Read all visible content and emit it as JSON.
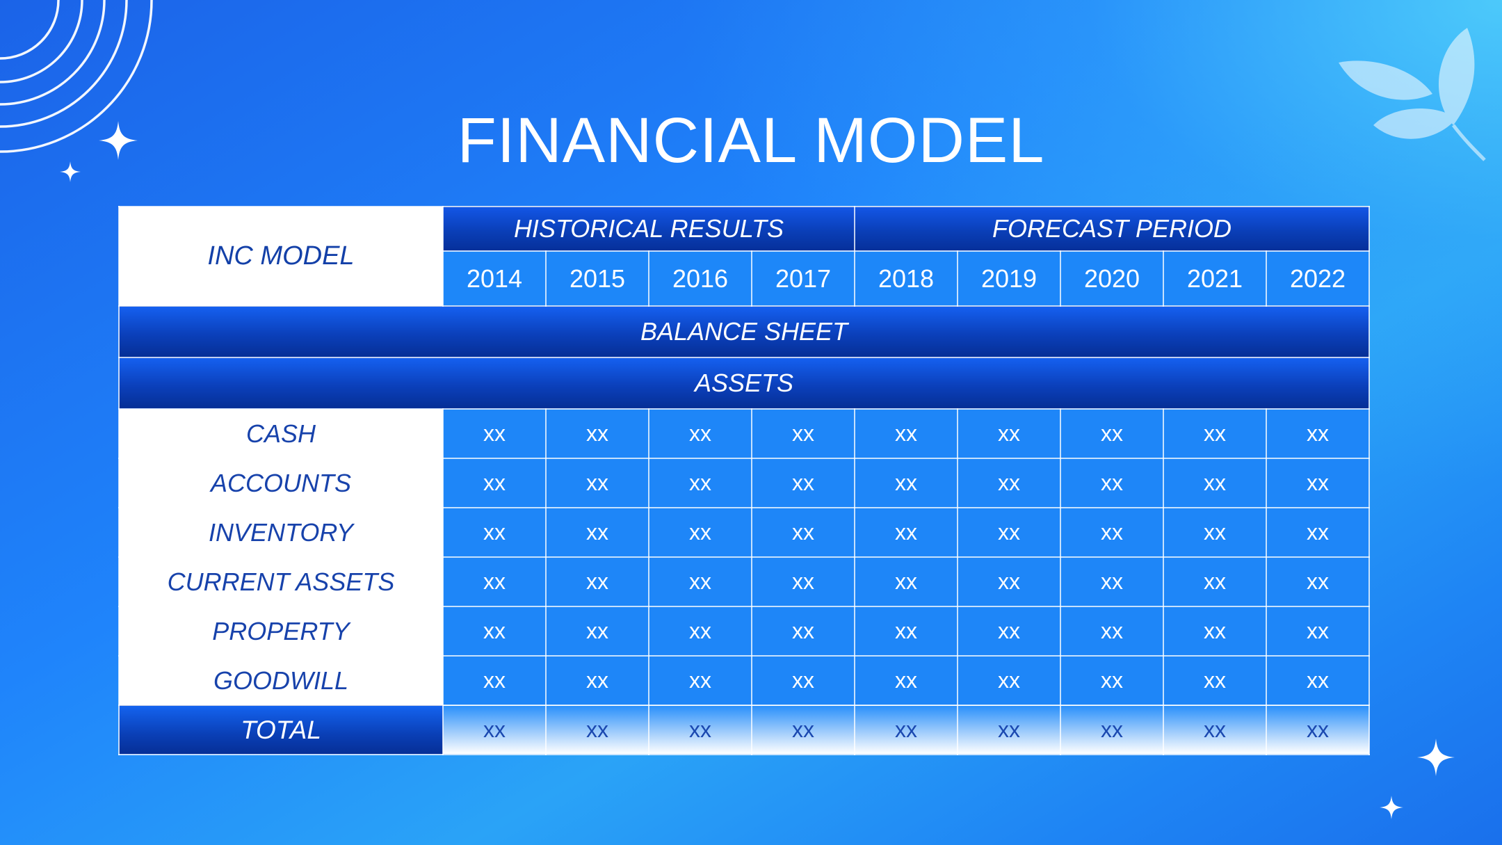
{
  "title": "FINANCIAL MODEL",
  "table": {
    "corner_label": "INC MODEL",
    "groups": [
      {
        "label": "HISTORICAL RESULTS",
        "span": 4
      },
      {
        "label": "FORECAST PERIOD",
        "span": 5
      }
    ],
    "years": [
      "2014",
      "2015",
      "2016",
      "2017",
      "2018",
      "2019",
      "2020",
      "2021",
      "2022"
    ],
    "section_headers": [
      "BALANCE SHEET",
      "ASSETS"
    ],
    "rows": [
      {
        "label": "CASH",
        "values": [
          "xx",
          "xx",
          "xx",
          "xx",
          "xx",
          "xx",
          "xx",
          "xx",
          "xx"
        ]
      },
      {
        "label": "ACCOUNTS",
        "values": [
          "xx",
          "xx",
          "xx",
          "xx",
          "xx",
          "xx",
          "xx",
          "xx",
          "xx"
        ]
      },
      {
        "label": "INVENTORY",
        "values": [
          "xx",
          "xx",
          "xx",
          "xx",
          "xx",
          "xx",
          "xx",
          "xx",
          "xx"
        ]
      },
      {
        "label": "CURRENT ASSETS",
        "values": [
          "xx",
          "xx",
          "xx",
          "xx",
          "xx",
          "xx",
          "xx",
          "xx",
          "xx"
        ]
      },
      {
        "label": "PROPERTY",
        "values": [
          "xx",
          "xx",
          "xx",
          "xx",
          "xx",
          "xx",
          "xx",
          "xx",
          "xx"
        ]
      },
      {
        "label": "GOODWILL",
        "values": [
          "xx",
          "xx",
          "xx",
          "xx",
          "xx",
          "xx",
          "xx",
          "xx",
          "xx"
        ]
      }
    ],
    "total": {
      "label": "TOTAL",
      "values": [
        "xx",
        "xx",
        "xx",
        "xx",
        "xx",
        "xx",
        "xx",
        "xx",
        "xx"
      ]
    }
  },
  "decorations": {
    "top_left": "concentric-arcs-icon",
    "top_right": "leaf-sprig-icon",
    "sparkles": "sparkle-icon"
  },
  "colors": {
    "background": "#1f84fb",
    "header_dark": "#0a3fb8",
    "cell": "#1e86f8",
    "label_text": "#1742ab",
    "white": "#ffffff"
  }
}
